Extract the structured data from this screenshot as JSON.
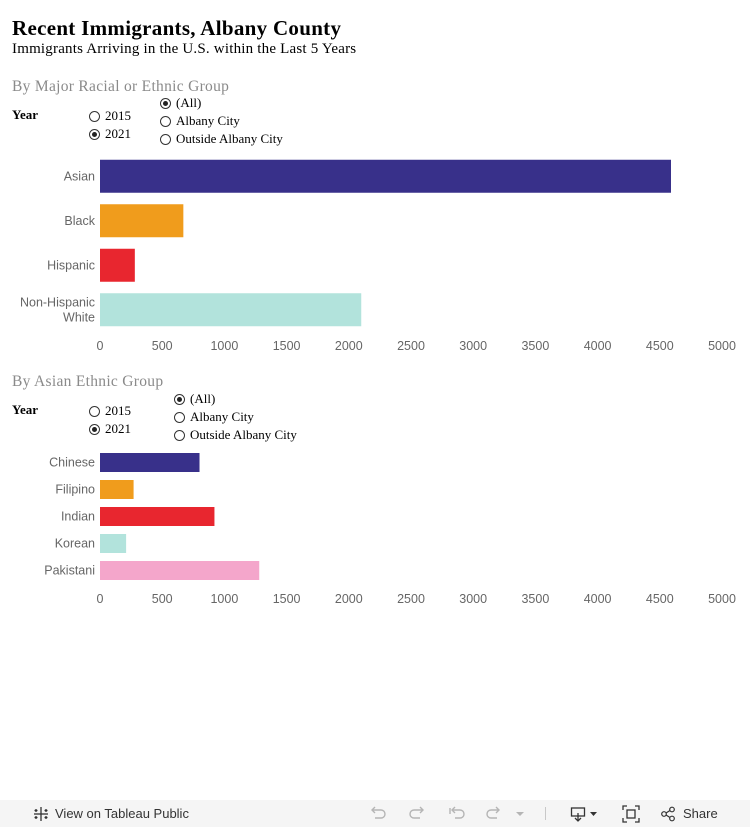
{
  "header": {
    "title": "Recent Immigrants, Albany County",
    "subtitle": "Immigrants Arriving in the U.S. within the Last 5 Years"
  },
  "section1": {
    "title": "By Major Racial or Ethnic Group",
    "year_label": "Year",
    "year_options": [
      "2015",
      "2021"
    ],
    "year_selected": "2021",
    "area_options": [
      "(All)",
      "Albany City",
      "Outside Albany City"
    ],
    "area_selected": "(All)"
  },
  "section2": {
    "title": "By Asian Ethnic Group",
    "year_label": "Year",
    "year_options": [
      "2015",
      "2021"
    ],
    "year_selected": "2021",
    "area_options": [
      "(All)",
      "Albany City",
      "Outside Albany City"
    ],
    "area_selected": "(All)"
  },
  "chart_data": [
    {
      "type": "bar",
      "orientation": "horizontal",
      "categories": [
        "Asian",
        "Black",
        "Hispanic",
        "Non-Hispanic White"
      ],
      "values": [
        4590,
        670,
        280,
        2100
      ],
      "xlim": [
        0,
        5000
      ],
      "xticks": [
        0,
        500,
        1000,
        1500,
        2000,
        2500,
        3000,
        3500,
        4000,
        4500,
        5000
      ],
      "xlabel": "",
      "ylabel": "",
      "grid": false,
      "colors": [
        "#38308a",
        "#f09c1c",
        "#e8262f",
        "#b2e3dc"
      ]
    },
    {
      "type": "bar",
      "orientation": "horizontal",
      "categories": [
        "Chinese",
        "Filipino",
        "Indian",
        "Korean",
        "Pakistani"
      ],
      "values": [
        800,
        270,
        920,
        210,
        1280
      ],
      "xlim": [
        0,
        5000
      ],
      "xticks": [
        0,
        500,
        1000,
        1500,
        2000,
        2500,
        3000,
        3500,
        4000,
        4500,
        5000
      ],
      "xlabel": "",
      "ylabel": "",
      "grid": false,
      "colors": [
        "#38308a",
        "#f09c1c",
        "#e8262f",
        "#b2e3dc",
        "#f4a6cb"
      ]
    }
  ],
  "footer": {
    "view_label": "View on Tableau Public",
    "share_label": "Share",
    "icons": [
      "tableau-logo-icon",
      "undo-icon",
      "redo-icon",
      "revert-icon",
      "refresh-icon",
      "dropdown-caret-icon",
      "download-icon",
      "fullscreen-icon",
      "share-icon"
    ]
  }
}
